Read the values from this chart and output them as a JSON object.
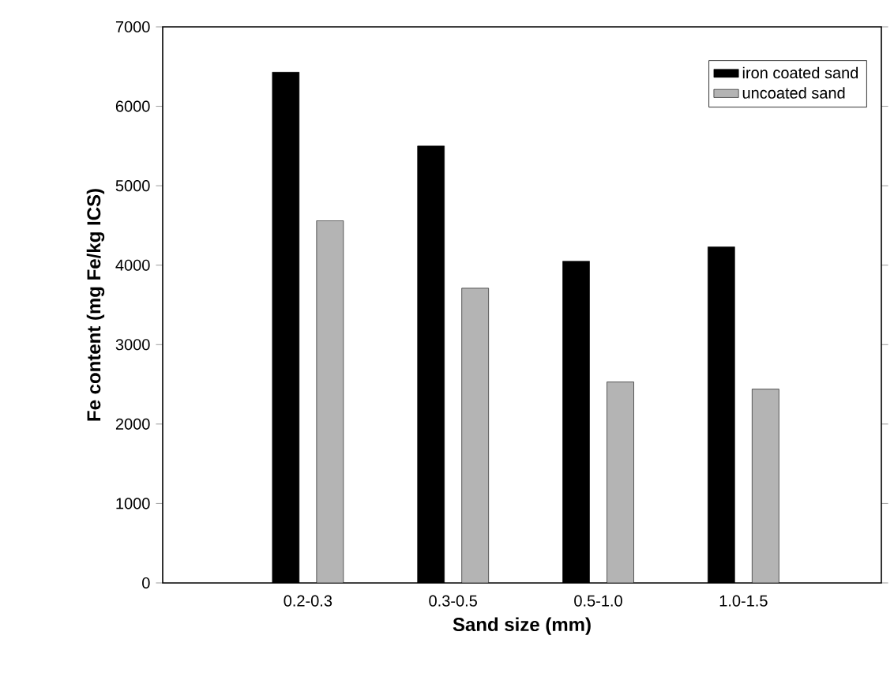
{
  "chart_data": {
    "type": "bar",
    "xlabel": "Sand size (mm)",
    "ylabel": "Fe content (mg Fe/kg ICS)",
    "categories": [
      "0.2-0.3",
      "0.3-0.5",
      "0.5-1.0",
      "1.0-1.5"
    ],
    "series": [
      {
        "name": "iron coated sand",
        "color": "#000000",
        "values": [
          6430,
          5500,
          4050,
          4230
        ]
      },
      {
        "name": "uncoated sand",
        "color": "#b4b4b4",
        "values": [
          4560,
          3710,
          2530,
          2440
        ]
      }
    ],
    "ylim": [
      0,
      7000
    ],
    "yticks": [
      0,
      1000,
      2000,
      3000,
      4000,
      5000,
      6000,
      7000
    ],
    "legend": "top right",
    "grid": false
  }
}
